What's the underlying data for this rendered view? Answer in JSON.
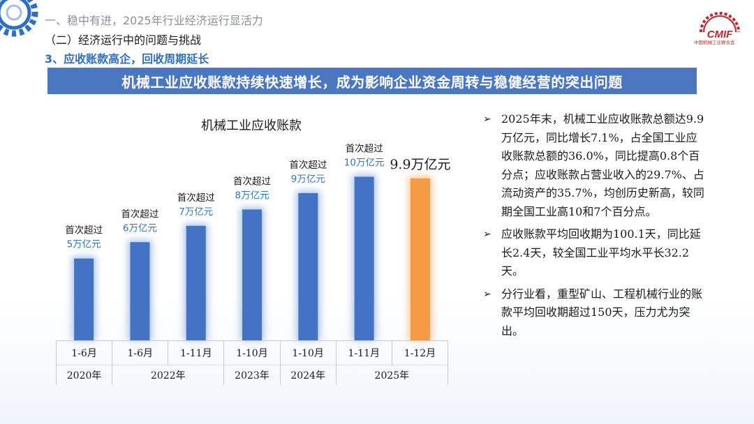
{
  "header": {
    "line1": "一、稳中有进，2025年行业经济运行显活力",
    "line2": "（二）经济运行中的问题与挑战",
    "line3": "3、应收账款高企，回收周期延长"
  },
  "logo": {
    "text": "CMIF",
    "subtitle": "中国机械工业联合会",
    "color": "#c0282d"
  },
  "banner": {
    "text": "机械工业应收账款持续快速增长，成为影响企业资金周转与稳健经营的突出问题"
  },
  "colors": {
    "bar": "#4472c4",
    "highlight": "#f59a44",
    "accent_text": "#2e75c7",
    "banner": "#4a77c0"
  },
  "chart_data": {
    "type": "bar",
    "title": "机械工业应收账款",
    "unit": "万亿元",
    "categories": [
      "1-6月",
      "1-6月",
      "1-11月",
      "1-10月",
      "1-10月",
      "1-11月",
      "1-12月"
    ],
    "years": [
      {
        "label": "2020年",
        "span": 1
      },
      {
        "label": "2022年",
        "span": 2
      },
      {
        "label": "2023年",
        "span": 1
      },
      {
        "label": "2024年",
        "span": 1
      },
      {
        "label": "2025年",
        "span": 2
      }
    ],
    "values": [
      5.0,
      6.0,
      7.0,
      8.0,
      9.0,
      10.0,
      9.9
    ],
    "highlight_index": 6,
    "ylim": [
      0,
      11
    ],
    "annotations": [
      {
        "index": 0,
        "line1": "首次超过",
        "line2": "5万亿元"
      },
      {
        "index": 1,
        "line1": "首次超过",
        "line2": "6万亿元"
      },
      {
        "index": 2,
        "line1": "首次超过",
        "line2": "7万亿元"
      },
      {
        "index": 3,
        "line1": "首次超过",
        "line2": "8万亿元"
      },
      {
        "index": 4,
        "line1": "首次超过",
        "line2": "9万亿元"
      },
      {
        "index": 5,
        "line1": "首次超过",
        "line2": "10万亿元"
      }
    ],
    "value_label": {
      "index": 6,
      "text": "9.9万亿元"
    }
  },
  "bullets": [
    {
      "mark": "➢",
      "text": "2025年末，机械工业应收账款总额达9.9万亿元，同比增长7.1%，占全国工业应收账款总额的36.0%，同比提高0.8个百分点；应收账款占营业收入的29.7%、占流动资产的35.7%，均创历史新高，较同期全国工业高10和7个百分点。"
    },
    {
      "mark": "➢",
      "text": "应收账款平均回收期为100.1天，同比延长2.4天，较全国工业平均水平长32.2天。"
    },
    {
      "mark": "➢",
      "text": "分行业看，重型矿山、工程机械行业的账款平均回收期超过150天，压力尤为突出。"
    }
  ]
}
